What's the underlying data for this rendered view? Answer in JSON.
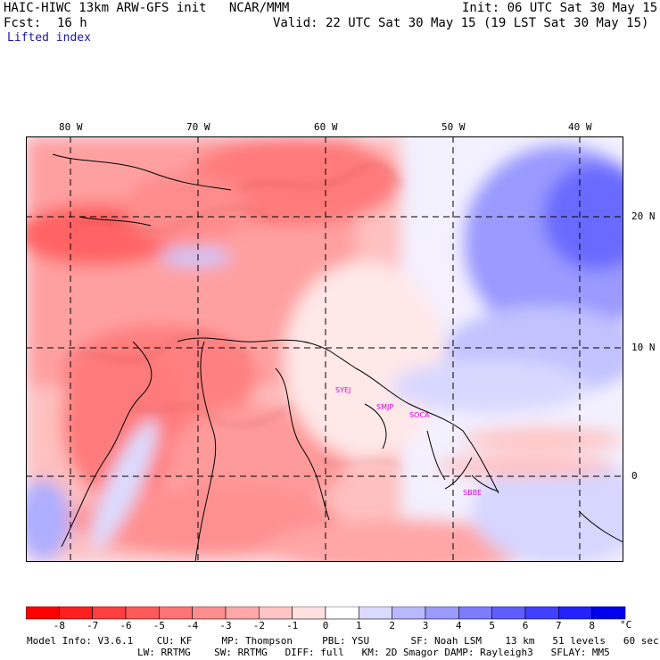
{
  "header": {
    "title_left": "HAIC-HIWC 13km ARW-GFS init   NCAR/MMM",
    "init": "Init: 06 UTC Sat 30 May 15",
    "fcst_label": "Fcst:",
    "fcst_value": "16 h",
    "valid": "Valid: 22 UTC Sat 30 May 15 (19 LST Sat 30 May 15)",
    "field": "Lifted index"
  },
  "map": {
    "lon_labels": [
      "80 W",
      "70 W",
      "60 W",
      "50 W",
      "40 W"
    ],
    "lat_labels": [
      "20 N",
      "10 N",
      "0"
    ],
    "stations": [
      "SYEJ",
      "SMJP",
      "SOCA",
      "SBBE"
    ],
    "colors": {
      "station": "#e000e0",
      "grid": "#000000",
      "border": "#000000"
    }
  },
  "colorbar": {
    "ticks": [
      "-8",
      "-7",
      "-6",
      "-5",
      "-4",
      "-3",
      "-2",
      "-1",
      "0",
      "1",
      "2",
      "3",
      "4",
      "5",
      "6",
      "7",
      "8"
    ],
    "unit": "°C",
    "colors": [
      "#ff0000",
      "#ff2020",
      "#ff3f3f",
      "#ff5a5a",
      "#ff7474",
      "#ff8e8e",
      "#ffa8a8",
      "#ffc4c4",
      "#ffe0e0",
      "#ffffff",
      "#dadaff",
      "#b8b8ff",
      "#9a9aff",
      "#7c7cff",
      "#5e5eff",
      "#4040ff",
      "#2222ff",
      "#0000ee"
    ]
  },
  "model_info": {
    "line1": "Model Info: V3.6.1    CU: KF     MP: Thompson     PBL: YSU       SF: Noah LSM    13 km   51 levels   60 sec",
    "line2": "LW: RRTMG    SW: RRTMG   DIFF: full   KM: 2D Smagor DAMP: Rayleigh3   SFLAY: MM5"
  }
}
